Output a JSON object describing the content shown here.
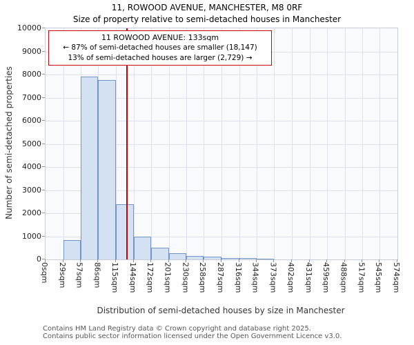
{
  "title": "11, ROWOOD AVENUE, MANCHESTER, M8 0RF",
  "subtitle": "Size of property relative to semi-detached houses in Manchester",
  "chart_data": {
    "type": "bar",
    "title": "11, ROWOOD AVENUE, MANCHESTER, M8 0RF",
    "subtitle": "Size of property relative to semi-detached houses in Manchester",
    "xlabel": "Distribution of semi-detached houses by size in Manchester",
    "ylabel": "Number of semi-detached properties",
    "ylim": [
      0,
      10000
    ],
    "ytick_step": 1000,
    "grid": true,
    "x_ticks": [
      "0sqm",
      "29sqm",
      "57sqm",
      "86sqm",
      "115sqm",
      "144sqm",
      "172sqm",
      "201sqm",
      "230sqm",
      "258sqm",
      "287sqm",
      "316sqm",
      "344sqm",
      "373sqm",
      "402sqm",
      "431sqm",
      "459sqm",
      "488sqm",
      "517sqm",
      "545sqm",
      "574sqm"
    ],
    "bin_edges": [
      0,
      29,
      57,
      86,
      115,
      144,
      172,
      201,
      230,
      258,
      287,
      316,
      344,
      373,
      402,
      431,
      459,
      488,
      517,
      545,
      574
    ],
    "values": [
      0,
      850,
      7900,
      7750,
      2400,
      1000,
      500,
      280,
      160,
      110,
      70,
      50,
      30,
      0,
      0,
      0,
      0,
      0,
      0,
      0
    ],
    "marker": {
      "x": 133,
      "color": "#cc0000"
    },
    "annotation": {
      "lines": [
        "11 ROWOOD AVENUE: 133sqm",
        "← 87% of semi-detached houses are smaller (18,147)",
        "13% of semi-detached houses are larger (2,729) →"
      ]
    },
    "colors": {
      "bar_fill": "#d4e1f3",
      "bar_border": "#6f95c9",
      "marker": "#cc0000",
      "grid": "#dde1ef",
      "plot_bg": "#f9fafd"
    }
  },
  "footer": {
    "line1": "Contains HM Land Registry data © Crown copyright and database right 2025.",
    "line2": "Contains public sector information licensed under the Open Government Licence v3.0."
  }
}
